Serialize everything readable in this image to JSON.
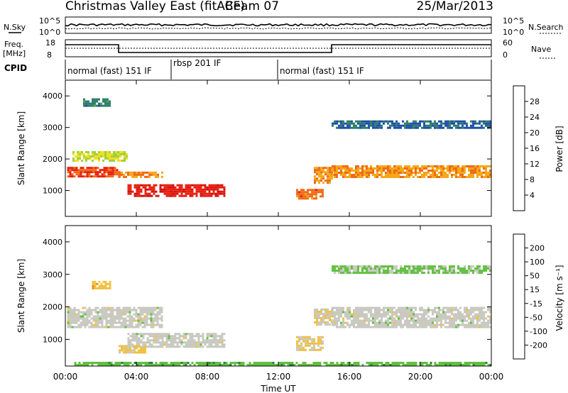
{
  "header": {
    "title": "Christmas Valley East (fitACF)",
    "beam": "Beam 07",
    "date": "25/Mar/2013"
  },
  "strips": {
    "nsky_label": "N.Sky",
    "nsearch_label": "N.Search",
    "noise_ticks": [
      "10^5",
      "10^0"
    ],
    "freq_label_1": "Freq.",
    "freq_label_2": "[MHz]",
    "freq_ticks": [
      "18",
      "8"
    ],
    "nave_label": "Nave",
    "nave_ticks": [
      "60",
      "0"
    ],
    "cpid_label": "CPID",
    "cpid_modes": [
      {
        "label": "normal (fast) 151 IF",
        "start_hour": 0,
        "end_hour": 6
      },
      {
        "label": "rbsp 201 IF",
        "start_hour": 6,
        "end_hour": 12
      },
      {
        "label": "normal (fast) 151 IF",
        "start_hour": 12,
        "end_hour": 24
      }
    ]
  },
  "axes": {
    "ylabel": "Slant Range [km]",
    "xlabel": "Time UT",
    "y_ticks": [
      "1000",
      "2000",
      "3000",
      "4000"
    ],
    "x_ticks": [
      "00:00",
      "04:00",
      "08:00",
      "12:00",
      "16:00",
      "20:00",
      "00:00"
    ]
  },
  "colorbars": {
    "power": {
      "label": "Power [dB]",
      "ticks": [
        "4",
        "8",
        "12",
        "16",
        "20",
        "24",
        "28"
      ],
      "colors": [
        "#1a1ae0",
        "#1e4fa8",
        "#2e7e6a",
        "#4ea64a",
        "#9ed23e",
        "#f0e020",
        "#f5a818",
        "#f06a18",
        "#e82010",
        "#d01010"
      ]
    },
    "velocity": {
      "label": "Velocity [m s⁻¹]",
      "ticks": [
        "200",
        "100",
        "50",
        "15",
        "-15",
        "-50",
        "-100",
        "-200"
      ],
      "colors": [
        "#1a1ad0",
        "#1e4fa8",
        "#2e7e4a",
        "#60c040",
        "#c8c8c0",
        "#f0c040",
        "#f08a20",
        "#f04a18",
        "#e01010"
      ]
    }
  },
  "chart_data": [
    {
      "type": "heatmap",
      "title": "Power",
      "xlabel": "Time UT",
      "ylabel": "Slant Range [km]",
      "xlim": [
        0,
        24
      ],
      "ylim": [
        180,
        4500
      ],
      "colorbar_label": "Power [dB]",
      "value_range": [
        0,
        32
      ],
      "echo_regions": [
        {
          "t0": 0.1,
          "t1": 3.0,
          "r_center": 1600,
          "r_width": 300,
          "value": 26
        },
        {
          "t0": 0.4,
          "t1": 3.5,
          "r_center": 2100,
          "r_width": 300,
          "value": 16
        },
        {
          "t0": 1.0,
          "t1": 2.5,
          "r_center": 3800,
          "r_width": 250,
          "value": 8
        },
        {
          "t0": 3.0,
          "t1": 5.5,
          "r_center": 1500,
          "r_width": 200,
          "value": 22
        },
        {
          "t0": 3.5,
          "t1": 9.0,
          "r_center": 1000,
          "r_width": 400,
          "value": 28
        },
        {
          "t0": 13.0,
          "t1": 14.5,
          "r_center": 900,
          "r_width": 300,
          "value": 24
        },
        {
          "t0": 14.0,
          "t1": 15.0,
          "r_center": 1500,
          "r_width": 500,
          "value": 22
        },
        {
          "t0": 15.0,
          "t1": 24.0,
          "r_center": 1600,
          "r_width": 400,
          "value": 22
        },
        {
          "t0": 15.0,
          "t1": 24.0,
          "r_center": 3100,
          "r_width": 250,
          "value": 6
        }
      ]
    },
    {
      "type": "heatmap",
      "title": "Velocity",
      "xlabel": "Time UT",
      "ylabel": "Slant Range [km]",
      "xlim": [
        0,
        24
      ],
      "ylim": [
        180,
        4500
      ],
      "colorbar_label": "Velocity [m s⁻¹]",
      "value_range": [
        -250,
        250
      ],
      "echo_regions": [
        {
          "t0": 0.1,
          "t1": 5.5,
          "r_center": 1700,
          "r_width": 600,
          "value": 0
        },
        {
          "t0": 3.5,
          "t1": 9.0,
          "r_center": 1000,
          "r_width": 400,
          "value": 0
        },
        {
          "t0": 3.0,
          "t1": 4.5,
          "r_center": 700,
          "r_width": 250,
          "value": 40
        },
        {
          "t0": 1.5,
          "t1": 2.5,
          "r_center": 2700,
          "r_width": 200,
          "value": 60
        },
        {
          "t0": 13.0,
          "t1": 14.5,
          "r_center": 900,
          "r_width": 400,
          "value": 40
        },
        {
          "t0": 14.0,
          "t1": 15.0,
          "r_center": 1700,
          "r_width": 500,
          "value": 20
        },
        {
          "t0": 15.0,
          "t1": 24.0,
          "r_center": 1700,
          "r_width": 600,
          "value": 0
        },
        {
          "t0": 15.0,
          "t1": 24.0,
          "r_center": 3150,
          "r_width": 250,
          "value": -40
        },
        {
          "t0": 0.5,
          "t1": 24.0,
          "r_center": 250,
          "r_width": 120,
          "value": -60
        }
      ]
    }
  ]
}
